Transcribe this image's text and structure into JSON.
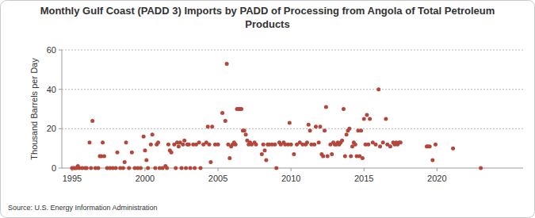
{
  "chart_data": {
    "type": "scatter",
    "title": "Monthly Gulf Coast (PADD 3) Imports by PADD of Processing from Angola of Total Petroleum Products",
    "y_label": "Thousand Barrels per Day",
    "source": "Source: U.S. Energy Information Administration",
    "color": "#b5473a",
    "marker": "circle",
    "grid": true,
    "xlim": [
      1994.3,
      2025.9
    ],
    "xticks": [
      1995,
      2000,
      2005,
      2010,
      2015,
      2020
    ],
    "ylim": [
      0,
      60
    ],
    "yticks": [
      0,
      20,
      40,
      60
    ],
    "x": [
      1995.0,
      1995.1,
      1995.2,
      1995.3,
      1995.4,
      1995.5,
      1995.7,
      1995.9,
      1996.0,
      1996.2,
      1996.3,
      1996.4,
      1996.6,
      1996.8,
      1996.9,
      1997.0,
      1997.1,
      1997.2,
      1997.4,
      1997.6,
      1997.8,
      1998.0,
      1998.1,
      1998.3,
      1998.5,
      1998.6,
      1998.7,
      1998.9,
      1999.1,
      1999.3,
      1999.5,
      1999.7,
      1999.9,
      2000.0,
      2000.1,
      2000.2,
      2000.4,
      2000.5,
      2000.7,
      2000.8,
      2000.9,
      2001.0,
      2001.2,
      2001.4,
      2001.5,
      2001.6,
      2001.7,
      2001.8,
      2002.0,
      2002.1,
      2002.2,
      2002.3,
      2002.4,
      2002.5,
      2002.6,
      2002.7,
      2002.8,
      2002.9,
      2003.0,
      2003.1,
      2003.3,
      2003.4,
      2003.5,
      2003.7,
      2003.8,
      2004.0,
      2004.2,
      2004.3,
      2004.4,
      2004.5,
      2004.6,
      2004.8,
      2005.0,
      2005.3,
      2005.5,
      2005.6,
      2005.7,
      2005.8,
      2005.9,
      2006.0,
      2006.1,
      2006.2,
      2006.3,
      2006.4,
      2006.5,
      2006.6,
      2006.7,
      2006.8,
      2006.9,
      2007.0,
      2007.1,
      2007.2,
      2007.3,
      2007.5,
      2007.6,
      2008.0,
      2008.1,
      2008.2,
      2008.3,
      2008.4,
      2008.5,
      2008.7,
      2008.9,
      2009.0,
      2009.2,
      2009.3,
      2009.5,
      2009.6,
      2009.8,
      2009.9,
      2010.0,
      2010.2,
      2010.4,
      2010.6,
      2010.8,
      2011.0,
      2011.1,
      2011.2,
      2011.3,
      2011.4,
      2011.6,
      2011.7,
      2011.9,
      2012.0,
      2012.1,
      2012.2,
      2012.3,
      2012.4,
      2012.5,
      2012.7,
      2012.8,
      2012.9,
      2013.0,
      2013.1,
      2013.2,
      2013.3,
      2013.4,
      2013.5,
      2013.6,
      2013.7,
      2013.8,
      2013.9,
      2014.0,
      2014.1,
      2014.2,
      2014.3,
      2014.4,
      2014.5,
      2014.6,
      2014.7,
      2014.8,
      2014.9,
      2015.0,
      2015.1,
      2015.2,
      2015.3,
      2015.4,
      2015.6,
      2015.8,
      2016.0,
      2016.1,
      2016.3,
      2016.5,
      2016.6,
      2016.8,
      2017.0,
      2017.1,
      2017.2,
      2017.3,
      2017.4,
      2017.5,
      2019.3,
      2019.4,
      2019.5,
      2019.7,
      2019.9,
      2021.1,
      2023.0
    ],
    "y": [
      0,
      0,
      0,
      0,
      1,
      0,
      0,
      0,
      0,
      13,
      0,
      24,
      0,
      0,
      6,
      6,
      13,
      6,
      0,
      0,
      0,
      0,
      8,
      0,
      0,
      3,
      13,
      0,
      8,
      0,
      0,
      0,
      16,
      9,
      4,
      0,
      12,
      17,
      0,
      12,
      13,
      0,
      0,
      1,
      0,
      12,
      9,
      8,
      12,
      0,
      13,
      11,
      13,
      0,
      12,
      14,
      0,
      12,
      12,
      0,
      12,
      0,
      12,
      13,
      0,
      12,
      13,
      21,
      12,
      3,
      21,
      12,
      12,
      28,
      24,
      53,
      12,
      5,
      11,
      12,
      13,
      12,
      30,
      30,
      30,
      30,
      19,
      19,
      17,
      14,
      12,
      13,
      12,
      13,
      12,
      7,
      12,
      9,
      4,
      12,
      12,
      12,
      12,
      0,
      13,
      12,
      13,
      12,
      12,
      23,
      12,
      7,
      12,
      13,
      12,
      12,
      13,
      22,
      19,
      12,
      12,
      21,
      13,
      21,
      7,
      6,
      19,
      31,
      6,
      12,
      7,
      13,
      12,
      12,
      13,
      12,
      13,
      14,
      30,
      6,
      17,
      19,
      20,
      6,
      11,
      13,
      12,
      6,
      19,
      6,
      19,
      5,
      25,
      12,
      27,
      12,
      25,
      13,
      12,
      40,
      11,
      13,
      25,
      12,
      11,
      13,
      12,
      13,
      12,
      13,
      13,
      11,
      11,
      11,
      4,
      12,
      10,
      0
    ]
  }
}
